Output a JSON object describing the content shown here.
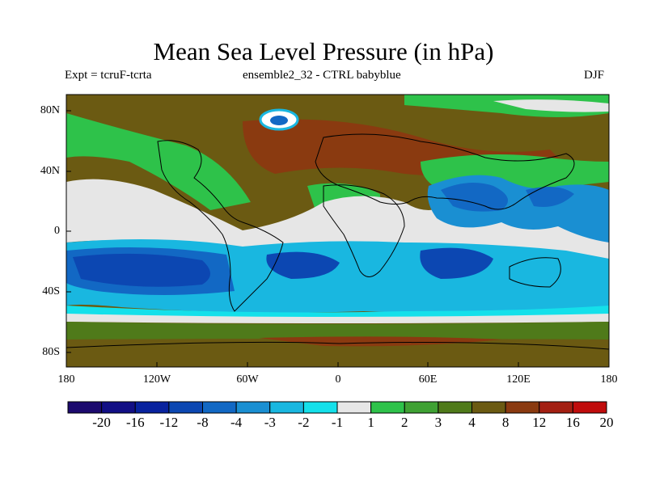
{
  "header": {
    "title": "Mean Sea Level Pressure (in hPa)",
    "expt": "Expt = tcruF-tcrta",
    "ensemble": "ensemble2_32 - CTRL babyblue",
    "season": "DJF"
  },
  "axes": {
    "lat_labels": [
      "80N",
      "40N",
      "0",
      "40S",
      "80S"
    ],
    "lon_labels": [
      "180",
      "120W",
      "60W",
      "0",
      "60E",
      "120E",
      "180"
    ]
  },
  "colorbar": {
    "labels": [
      "-20",
      "-16",
      "-12",
      "-8",
      "-4",
      "-3",
      "-2",
      "-1",
      "1",
      "2",
      "3",
      "4",
      "8",
      "12",
      "16",
      "20"
    ],
    "colors": [
      "#1c0a6e",
      "#120f85",
      "#08229e",
      "#0c47b2",
      "#1268c4",
      "#1a8fd2",
      "#19b7e0",
      "#14e0ea",
      "#e6e6e6",
      "#2ec24a",
      "#3fa133",
      "#4f7a1a",
      "#6b5a12",
      "#8a3a10",
      "#a31f12",
      "#c00c0c"
    ]
  }
}
